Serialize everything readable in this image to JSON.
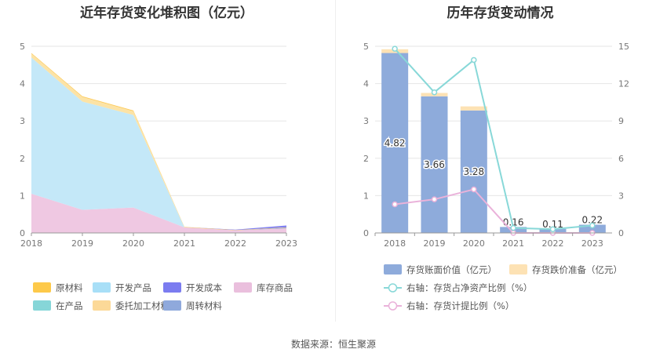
{
  "charts": {
    "left": {
      "title": "近年存货变化堆积图（亿元）",
      "type": "area",
      "x": [
        "2018",
        "2019",
        "2020",
        "2021",
        "2022",
        "2023"
      ],
      "ylim": [
        0,
        5
      ],
      "yticks": [
        "0",
        "1",
        "2",
        "3",
        "4",
        "5"
      ],
      "series": [
        {
          "name": "库存商品",
          "color": "#efc8e2",
          "values": [
            1.05,
            0.62,
            0.68,
            0.15,
            0.07,
            0.12
          ]
        },
        {
          "name": "开发产品",
          "color": "#c4e8f8",
          "values": [
            3.65,
            2.9,
            2.48,
            0.0,
            0.0,
            0.0
          ]
        },
        {
          "name": "委托加工材料",
          "color": "#fce3a6",
          "values": [
            0.1,
            0.12,
            0.1,
            0.0,
            0.0,
            0.0
          ]
        },
        {
          "name": "周转材料",
          "color": "#93abdc",
          "values": [
            0.0,
            0.0,
            0.0,
            0.0,
            0.0,
            0.02
          ]
        },
        {
          "name": "原材料",
          "color": "#fdcb5a",
          "values": [
            0.02,
            0.02,
            0.02,
            0.01,
            0.01,
            0.01
          ]
        },
        {
          "name": "开发成本",
          "color": "#8080f0",
          "values": [
            0.0,
            0.0,
            0.0,
            0.0,
            0.01,
            0.05
          ]
        },
        {
          "name": "在产品",
          "color": "#8fd8dc",
          "values": [
            0.0,
            0.0,
            0.0,
            0.0,
            0.0,
            0.0
          ]
        }
      ],
      "legend": [
        {
          "name": "原材料",
          "color": "#fdc94a"
        },
        {
          "name": "开发产品",
          "color": "#a8dff7"
        },
        {
          "name": "开发成本",
          "color": "#7b7cf0"
        },
        {
          "name": "库存商品",
          "color": "#eabfdd"
        },
        {
          "name": "在产品",
          "color": "#86d6d8"
        },
        {
          "name": "委托加工材料",
          "color": "#fcd998"
        },
        {
          "name": "周转材料",
          "color": "#8fa9dc"
        }
      ]
    },
    "right": {
      "title": "历年存货变动情况",
      "type": "bar",
      "x": [
        "2018",
        "2019",
        "2020",
        "2021",
        "2022",
        "2023"
      ],
      "ylim": [
        0,
        5
      ],
      "yticks": [
        "0",
        "1",
        "2",
        "3",
        "4",
        "5"
      ],
      "y2lim": [
        0,
        15
      ],
      "y2ticks": [
        "0",
        "3",
        "6",
        "9",
        "12",
        "15"
      ],
      "book_value": [
        4.82,
        3.66,
        3.28,
        0.16,
        0.11,
        0.22
      ],
      "book_value_labels": [
        "4.82",
        "3.66",
        "3.28",
        "0.16",
        "0.11",
        "0.22"
      ],
      "impairment": [
        0.1,
        0.09,
        0.11,
        0.0,
        0.0,
        0.0
      ],
      "ratio_net_assets": [
        14.8,
        11.3,
        13.9,
        0.4,
        0.3,
        0.6
      ],
      "provision_ratio": [
        2.3,
        2.7,
        3.5,
        0.0,
        0.0,
        0.0
      ],
      "colors": {
        "book": "#8eabdb",
        "impair": "#fde2b4",
        "ratio": "#88d8d8",
        "provision": "#eab2da"
      },
      "legend": {
        "book": "存货账面价值（亿元）",
        "impair": "存货跌价准备（亿元）",
        "ratio": "右轴：存货占净资产比例（%）",
        "provision": "右轴：存货计提比例（%）"
      }
    }
  },
  "source": "数据来源：恒生聚源"
}
